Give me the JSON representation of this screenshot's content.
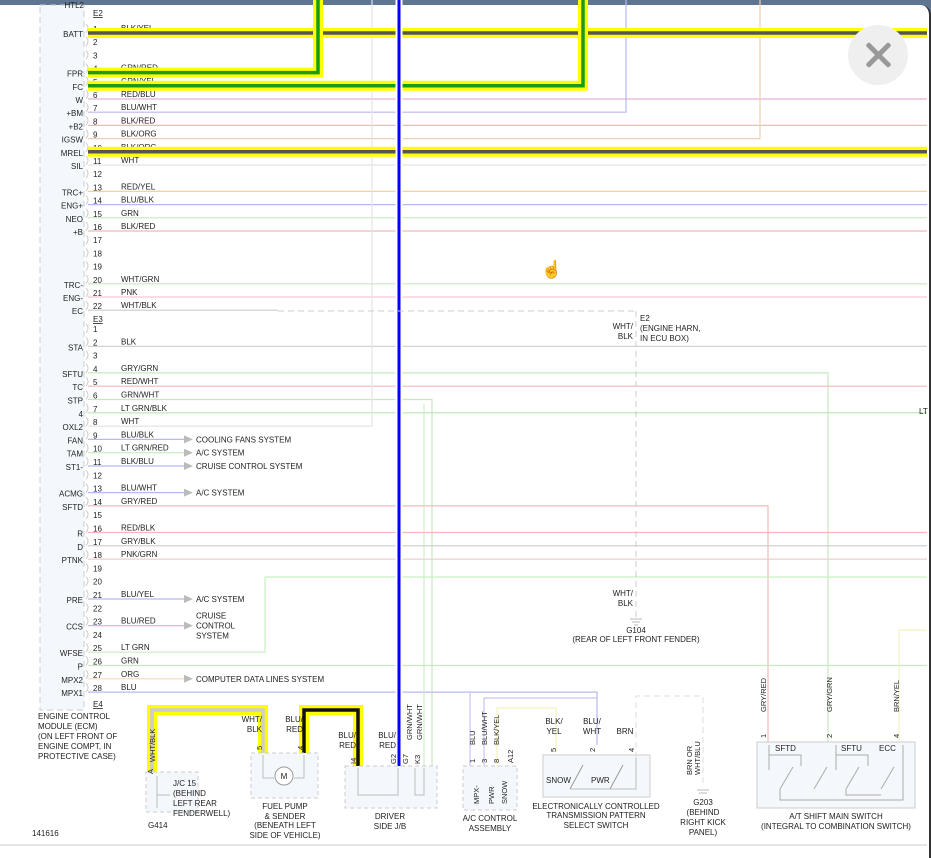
{
  "diagram_id": "141616",
  "close_button": {
    "icon": "close-icon"
  },
  "colors": {
    "highlight": "#ffff00",
    "blue": "#0000ff",
    "green": "#1a9a1a",
    "dark": "#555555",
    "frame": "#5f7692"
  },
  "ecm": {
    "cut_label": "HTL2",
    "name_lines": [
      "ENGINE CONTROL",
      "MODULE (ECM)",
      "(ON LEFT FRONT OF",
      "ENGINE COMPT, IN",
      "PROTECTIVE CASE)"
    ],
    "connectors": [
      {
        "id": "E2",
        "pins": [
          {
            "n": "1",
            "wire": "BLK/YEL",
            "func": "BATT"
          },
          {
            "n": "2",
            "wire": "",
            "func": ""
          },
          {
            "n": "3",
            "wire": "",
            "func": ""
          },
          {
            "n": "4",
            "wire": "GRN/RED",
            "func": "FPR"
          },
          {
            "n": "5",
            "wire": "GRN/YEL",
            "func": "FC"
          },
          {
            "n": "6",
            "wire": "RED/BLU",
            "func": "W"
          },
          {
            "n": "7",
            "wire": "BLU/WHT",
            "func": "+BM"
          },
          {
            "n": "8",
            "wire": "BLK/RED",
            "func": "+B2"
          },
          {
            "n": "9",
            "wire": "BLK/ORG",
            "func": "IGSW"
          },
          {
            "n": "10",
            "wire": "BLK/ORG",
            "func": "MREL"
          },
          {
            "n": "11",
            "wire": "WHT",
            "func": "SIL"
          },
          {
            "n": "12",
            "wire": "",
            "func": ""
          },
          {
            "n": "13",
            "wire": "RED/YEL",
            "func": "TRC+"
          },
          {
            "n": "14",
            "wire": "BLU/BLK",
            "func": "ENG+"
          },
          {
            "n": "15",
            "wire": "GRN",
            "func": "NEO"
          },
          {
            "n": "16",
            "wire": "BLK/RED",
            "func": "+B"
          },
          {
            "n": "17",
            "wire": "",
            "func": ""
          },
          {
            "n": "18",
            "wire": "",
            "func": ""
          },
          {
            "n": "19",
            "wire": "",
            "func": ""
          },
          {
            "n": "20",
            "wire": "WHT/GRN",
            "func": "TRC-"
          },
          {
            "n": "21",
            "wire": "PNK",
            "func": "ENG-"
          },
          {
            "n": "22",
            "wire": "WHT/BLK",
            "func": "EC"
          }
        ]
      },
      {
        "id": "E3",
        "pins": [
          {
            "n": "1",
            "wire": "",
            "func": ""
          },
          {
            "n": "2",
            "wire": "BLK",
            "func": "STA"
          },
          {
            "n": "3",
            "wire": "",
            "func": ""
          },
          {
            "n": "4",
            "wire": "GRY/GRN",
            "func": "SFTU"
          },
          {
            "n": "5",
            "wire": "RED/WHT",
            "func": "TC"
          },
          {
            "n": "6",
            "wire": "GRN/WHT",
            "func": "STP"
          },
          {
            "n": "7",
            "wire": "LT GRN/BLK",
            "func": "4"
          },
          {
            "n": "8",
            "wire": "WHT",
            "func": "OXL2"
          },
          {
            "n": "9",
            "wire": "BLU/BLK",
            "func": "FAN"
          },
          {
            "n": "10",
            "wire": "LT GRN/RED",
            "func": "TAM"
          },
          {
            "n": "11",
            "wire": "BLK/BLU",
            "func": "ST1-"
          },
          {
            "n": "12",
            "wire": "",
            "func": ""
          },
          {
            "n": "13",
            "wire": "BLU/WHT",
            "func": "ACMG"
          },
          {
            "n": "14",
            "wire": "GRY/RED",
            "func": "SFTD"
          },
          {
            "n": "15",
            "wire": "",
            "func": ""
          },
          {
            "n": "16",
            "wire": "RED/BLK",
            "func": "R"
          },
          {
            "n": "17",
            "wire": "GRY/BLK",
            "func": "D"
          },
          {
            "n": "18",
            "wire": "PNK/GRN",
            "func": "PTNK"
          },
          {
            "n": "19",
            "wire": "",
            "func": ""
          },
          {
            "n": "20",
            "wire": "",
            "func": ""
          },
          {
            "n": "21",
            "wire": "BLU/YEL",
            "func": "PRE"
          },
          {
            "n": "22",
            "wire": "",
            "func": ""
          },
          {
            "n": "23",
            "wire": "BLU/RED",
            "func": "CCS"
          },
          {
            "n": "24",
            "wire": "",
            "func": ""
          },
          {
            "n": "25",
            "wire": "LT GRN",
            "func": "WFSE"
          },
          {
            "n": "26",
            "wire": "GRN",
            "func": "P"
          },
          {
            "n": "27",
            "wire": "ORG",
            "func": "MPX2"
          },
          {
            "n": "28",
            "wire": "BLU",
            "func": "MPX1"
          }
        ]
      },
      {
        "id": "E4",
        "pins": []
      }
    ],
    "arrows": [
      {
        "pin": "9",
        "text": [
          "COOLING FANS SYSTEM"
        ]
      },
      {
        "pin": "10",
        "text": [
          "A/C SYSTEM"
        ]
      },
      {
        "pin": "11",
        "text": [
          "CRUISE CONTROL SYSTEM"
        ]
      },
      {
        "pin": "13",
        "text": [
          "A/C SYSTEM"
        ]
      },
      {
        "pin": "21",
        "text": [
          "A/C SYSTEM"
        ]
      },
      {
        "pin": "23",
        "text": [
          "CRUISE",
          "CONTROL",
          "SYSTEM"
        ]
      },
      {
        "pin": "27",
        "text": [
          "COMPUTER DATA LINES SYSTEM"
        ]
      }
    ]
  },
  "e2_splice": {
    "wire": [
      "WHT/",
      "BLK"
    ],
    "label": [
      "E2",
      "(ENGINE HARN,",
      "IN ECU BOX)"
    ],
    "right_cut": "LT"
  },
  "g104": {
    "wire": [
      "WHT/",
      "BLK"
    ],
    "label": [
      "G104",
      "(REAR OF LEFT FRONT FENDER)"
    ]
  },
  "components": {
    "jc15": {
      "wire": "WHT/BLK",
      "pin": "A",
      "label": [
        "J/C 15",
        "(BEHIND",
        "LEFT REAR",
        "FENDERWELL)"
      ],
      "ground": "G414"
    },
    "fuel_pump": {
      "wires": [
        [
          "WHT/",
          "BLK"
        ],
        [
          "BLU/",
          "RED"
        ]
      ],
      "pins": [
        "5",
        "4"
      ],
      "motor": "M",
      "label": [
        "FUEL PUMP",
        "& SENDER",
        "(BENEATH LEFT",
        "SIDE OF VEHICLE)"
      ]
    },
    "driver_jb": {
      "wires": [
        [
          "BLU/",
          "RED"
        ],
        [
          "BLU/",
          "RED"
        ],
        "GRN/WHT",
        "GRN/WHT"
      ],
      "pins": [
        "I4",
        "G2",
        "G7",
        "K3"
      ],
      "label": [
        "DRIVER",
        "SIDE J/B"
      ]
    },
    "ac_control": {
      "wires": [
        "BLU",
        "BLU/WHT",
        "BLK/YEL"
      ],
      "pins": [
        "1",
        "3",
        "8",
        "A12"
      ],
      "terms": [
        "MPX-",
        "PWR",
        "SNOW"
      ],
      "label": [
        "A/C CONTROL",
        "ASSEMBLY"
      ]
    },
    "etc_switch": {
      "wires": [
        [
          "BLK/",
          "YEL"
        ],
        [
          "BLU/",
          "WHT"
        ],
        "BRN"
      ],
      "pins": [
        "5",
        "2",
        "4"
      ],
      "terms": [
        "SNOW",
        "PWR"
      ],
      "label": [
        "ELECTRONICALLY CONTROLLED",
        "TRANSMISSION PATTERN",
        "SELECT SWITCH"
      ]
    },
    "g203": {
      "wire": [
        "BRN OR",
        "WHT/BLU"
      ],
      "label": [
        "G203",
        "(BEHIND",
        "RIGHT KICK",
        "PANEL)"
      ]
    },
    "at_switch": {
      "wires": [
        "GRY/RED",
        "GRY/GRN",
        "BRN/YEL"
      ],
      "pins": [
        "1",
        "2",
        "4"
      ],
      "terms": [
        "SFTD",
        "SFTU",
        "ECC"
      ],
      "label": [
        "A/T SHIFT MAIN SWITCH",
        "(INTEGRAL TO COMBINATION SWITCH)"
      ]
    }
  }
}
